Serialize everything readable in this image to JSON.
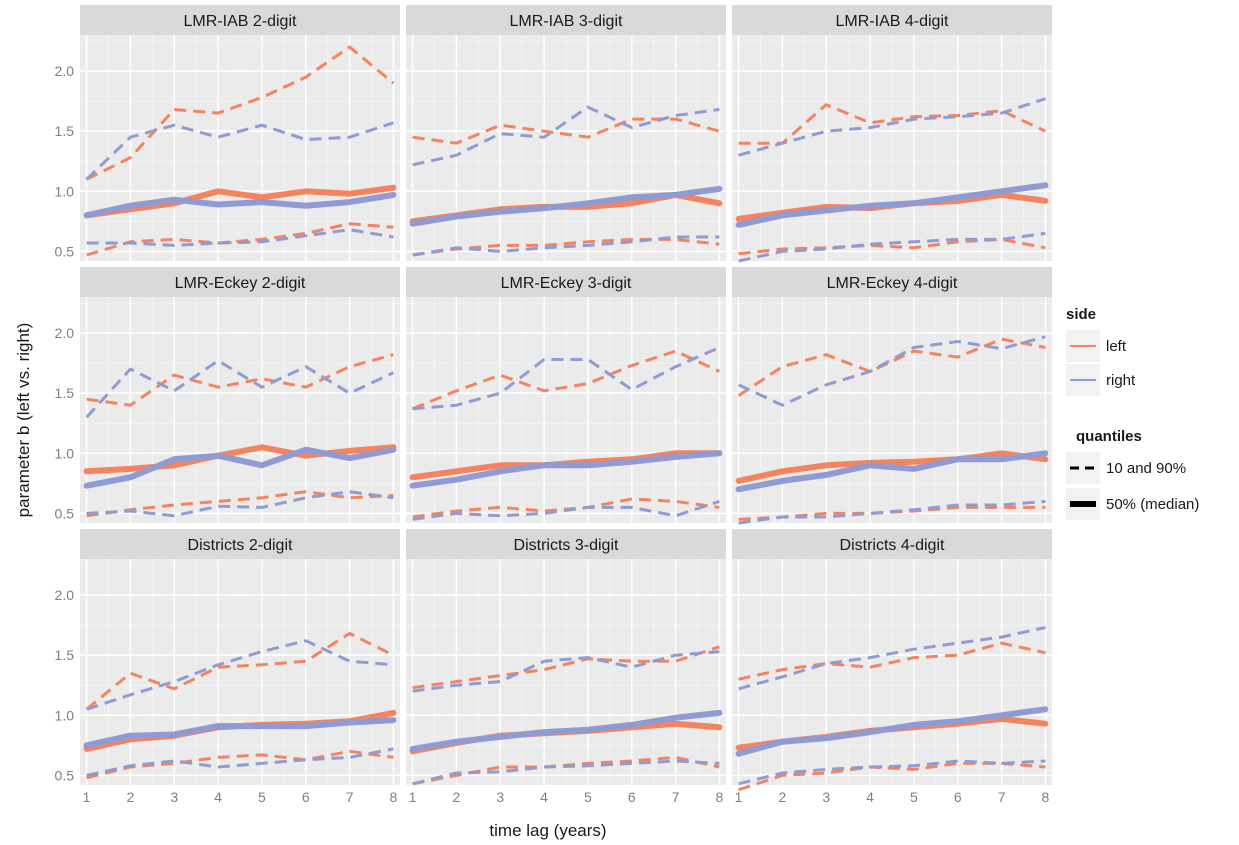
{
  "chart_data": {
    "type": "line",
    "xlabel": "time lag (years)",
    "ylabel": "parameter b (left vs. right)",
    "x": [
      1,
      2,
      3,
      4,
      5,
      6,
      7,
      8
    ],
    "xlim": [
      0.85,
      8.15
    ],
    "ylim": [
      0.42,
      2.3
    ],
    "x_ticks": [
      "1",
      "2",
      "3",
      "4",
      "5",
      "6",
      "7",
      "8"
    ],
    "y_ticks": [
      {
        "value": 0.5,
        "label": "0.5"
      },
      {
        "value": 1.0,
        "label": "1.0"
      },
      {
        "value": 1.5,
        "label": "1.5"
      },
      {
        "value": 2.0,
        "label": "2.0"
      }
    ],
    "grid": true,
    "legend_position": "right",
    "colors": {
      "left": "#f4845f",
      "right": "#8f9bd2",
      "panel_bg": "#ebebeb",
      "strip_bg": "#d9d9d9",
      "grid": "#ffffff"
    },
    "legend": {
      "side": {
        "title": "side",
        "items": [
          "left",
          "right"
        ]
      },
      "quantiles": {
        "title": "quantiles",
        "items": [
          "10 and 90%",
          "50% (median)"
        ]
      }
    },
    "panels": [
      {
        "title": "LMR-IAB 2-digit",
        "series": {
          "left": {
            "q10": [
              0.47,
              0.58,
              0.6,
              0.57,
              0.6,
              0.65,
              0.73,
              0.7
            ],
            "q50": [
              0.8,
              0.85,
              0.9,
              1.0,
              0.95,
              1.0,
              0.98,
              1.03
            ],
            "q90": [
              1.1,
              1.28,
              1.68,
              1.65,
              1.78,
              1.95,
              2.2,
              1.9
            ]
          },
          "right": {
            "q10": [
              0.57,
              0.57,
              0.55,
              0.57,
              0.58,
              0.63,
              0.68,
              0.62
            ],
            "q50": [
              0.8,
              0.88,
              0.93,
              0.89,
              0.91,
              0.88,
              0.91,
              0.97
            ],
            "q90": [
              1.1,
              1.45,
              1.55,
              1.45,
              1.55,
              1.43,
              1.45,
              1.57
            ]
          }
        }
      },
      {
        "title": "LMR-IAB 3-digit",
        "series": {
          "left": {
            "q10": [
              0.47,
              0.52,
              0.55,
              0.55,
              0.58,
              0.6,
              0.6,
              0.56
            ],
            "q50": [
              0.75,
              0.8,
              0.85,
              0.87,
              0.87,
              0.9,
              0.97,
              0.9
            ],
            "q90": [
              1.45,
              1.4,
              1.55,
              1.5,
              1.45,
              1.6,
              1.6,
              1.5
            ]
          },
          "right": {
            "q10": [
              0.47,
              0.53,
              0.5,
              0.53,
              0.55,
              0.58,
              0.62,
              0.62
            ],
            "q50": [
              0.73,
              0.79,
              0.83,
              0.86,
              0.9,
              0.95,
              0.97,
              1.02
            ],
            "q90": [
              1.22,
              1.3,
              1.48,
              1.45,
              1.7,
              1.53,
              1.63,
              1.68
            ]
          }
        }
      },
      {
        "title": "LMR-IAB 4-digit",
        "series": {
          "left": {
            "q10": [
              0.48,
              0.52,
              0.53,
              0.55,
              0.53,
              0.58,
              0.6,
              0.53
            ],
            "q50": [
              0.77,
              0.82,
              0.87,
              0.86,
              0.9,
              0.92,
              0.97,
              0.92
            ],
            "q90": [
              1.4,
              1.4,
              1.72,
              1.57,
              1.62,
              1.63,
              1.67,
              1.5
            ]
          },
          "right": {
            "q10": [
              0.42,
              0.5,
              0.52,
              0.56,
              0.58,
              0.6,
              0.6,
              0.65
            ],
            "q50": [
              0.72,
              0.8,
              0.84,
              0.88,
              0.9,
              0.95,
              1.0,
              1.05
            ],
            "q90": [
              1.3,
              1.4,
              1.5,
              1.53,
              1.6,
              1.62,
              1.65,
              1.77
            ]
          }
        }
      },
      {
        "title": "LMR-Eckey 2-digit",
        "series": {
          "left": {
            "q10": [
              0.48,
              0.53,
              0.57,
              0.6,
              0.63,
              0.68,
              0.63,
              0.65
            ],
            "q50": [
              0.85,
              0.87,
              0.9,
              0.98,
              1.05,
              0.98,
              1.02,
              1.05
            ],
            "q90": [
              1.45,
              1.4,
              1.65,
              1.55,
              1.62,
              1.55,
              1.72,
              1.82
            ]
          },
          "right": {
            "q10": [
              0.5,
              0.52,
              0.48,
              0.56,
              0.55,
              0.63,
              0.68,
              0.63
            ],
            "q50": [
              0.73,
              0.8,
              0.95,
              0.98,
              0.9,
              1.03,
              0.96,
              1.03
            ],
            "q90": [
              1.3,
              1.7,
              1.52,
              1.77,
              1.55,
              1.72,
              1.5,
              1.67
            ]
          }
        }
      },
      {
        "title": "LMR-Eckey 3-digit",
        "series": {
          "left": {
            "q10": [
              0.47,
              0.52,
              0.55,
              0.52,
              0.55,
              0.62,
              0.6,
              0.55
            ],
            "q50": [
              0.8,
              0.85,
              0.9,
              0.9,
              0.93,
              0.95,
              1.0,
              1.0
            ],
            "q90": [
              1.37,
              1.52,
              1.65,
              1.52,
              1.58,
              1.73,
              1.85,
              1.68
            ]
          },
          "right": {
            "q10": [
              0.45,
              0.5,
              0.48,
              0.5,
              0.55,
              0.55,
              0.48,
              0.6
            ],
            "q50": [
              0.73,
              0.78,
              0.85,
              0.9,
              0.9,
              0.93,
              0.97,
              1.0
            ],
            "q90": [
              1.37,
              1.4,
              1.5,
              1.78,
              1.78,
              1.53,
              1.72,
              1.88
            ]
          }
        }
      },
      {
        "title": "LMR-Eckey 4-digit",
        "series": {
          "left": {
            "q10": [
              0.45,
              0.47,
              0.5,
              0.5,
              0.52,
              0.55,
              0.55,
              0.55
            ],
            "q50": [
              0.77,
              0.85,
              0.9,
              0.92,
              0.93,
              0.95,
              1.0,
              0.95
            ],
            "q90": [
              1.48,
              1.72,
              1.82,
              1.68,
              1.85,
              1.8,
              1.95,
              1.88
            ]
          },
          "right": {
            "q10": [
              0.42,
              0.47,
              0.47,
              0.5,
              0.53,
              0.57,
              0.57,
              0.6
            ],
            "q50": [
              0.7,
              0.77,
              0.82,
              0.9,
              0.87,
              0.95,
              0.95,
              1.0
            ],
            "q90": [
              1.57,
              1.4,
              1.57,
              1.68,
              1.88,
              1.93,
              1.87,
              1.97
            ]
          }
        }
      },
      {
        "title": "Districts 2-digit",
        "series": {
          "left": {
            "q10": [
              0.48,
              0.57,
              0.6,
              0.65,
              0.67,
              0.63,
              0.7,
              0.65
            ],
            "q50": [
              0.72,
              0.8,
              0.83,
              0.9,
              0.92,
              0.93,
              0.95,
              1.02
            ],
            "q90": [
              1.05,
              1.35,
              1.22,
              1.4,
              1.42,
              1.45,
              1.68,
              1.5
            ]
          },
          "right": {
            "q10": [
              0.5,
              0.58,
              0.62,
              0.57,
              0.6,
              0.63,
              0.65,
              0.72
            ],
            "q50": [
              0.75,
              0.83,
              0.84,
              0.91,
              0.91,
              0.91,
              0.94,
              0.96
            ],
            "q90": [
              1.05,
              1.17,
              1.28,
              1.42,
              1.53,
              1.62,
              1.45,
              1.42
            ]
          }
        }
      },
      {
        "title": "Districts 3-digit",
        "series": {
          "left": {
            "q10": [
              0.43,
              0.5,
              0.57,
              0.57,
              0.6,
              0.62,
              0.65,
              0.57
            ],
            "q50": [
              0.7,
              0.77,
              0.83,
              0.85,
              0.87,
              0.9,
              0.93,
              0.9
            ],
            "q90": [
              1.23,
              1.28,
              1.33,
              1.38,
              1.47,
              1.45,
              1.45,
              1.57
            ]
          },
          "right": {
            "q10": [
              0.43,
              0.52,
              0.53,
              0.57,
              0.58,
              0.6,
              0.62,
              0.6
            ],
            "q50": [
              0.72,
              0.78,
              0.82,
              0.86,
              0.88,
              0.92,
              0.98,
              1.02
            ],
            "q90": [
              1.2,
              1.25,
              1.28,
              1.45,
              1.48,
              1.4,
              1.5,
              1.53
            ]
          }
        }
      },
      {
        "title": "Districts 4-digit",
        "series": {
          "left": {
            "q10": [
              0.38,
              0.5,
              0.52,
              0.57,
              0.55,
              0.6,
              0.6,
              0.57
            ],
            "q50": [
              0.73,
              0.78,
              0.82,
              0.87,
              0.9,
              0.93,
              0.97,
              0.93
            ],
            "q90": [
              1.3,
              1.38,
              1.43,
              1.4,
              1.48,
              1.5,
              1.6,
              1.52
            ]
          },
          "right": {
            "q10": [
              0.43,
              0.52,
              0.55,
              0.57,
              0.58,
              0.62,
              0.6,
              0.62
            ],
            "q50": [
              0.68,
              0.78,
              0.81,
              0.86,
              0.92,
              0.95,
              1.0,
              1.05
            ],
            "q90": [
              1.22,
              1.32,
              1.43,
              1.48,
              1.55,
              1.6,
              1.65,
              1.73
            ]
          }
        }
      }
    ]
  }
}
